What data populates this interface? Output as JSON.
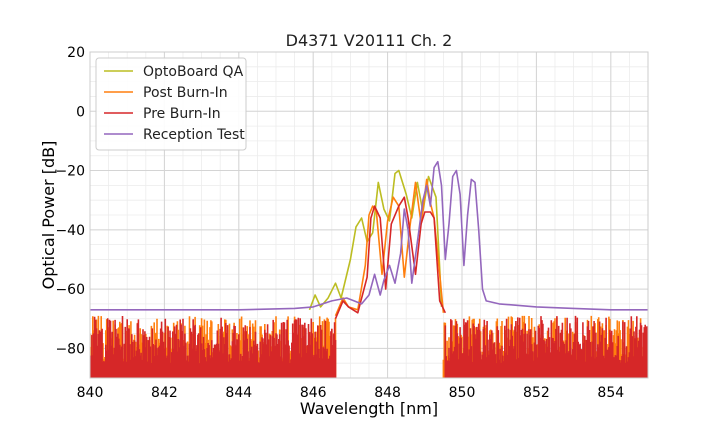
{
  "chart_data": {
    "type": "line",
    "title": "D4371 V20111 Ch. 2",
    "xlabel": "Wavelength [nm]",
    "ylabel": "Optical Power [dB]",
    "xlim": [
      840,
      855
    ],
    "ylim": [
      -90,
      20
    ],
    "x_ticks": [
      840,
      842,
      844,
      846,
      848,
      850,
      852,
      854
    ],
    "y_ticks": [
      -80,
      -60,
      -40,
      -20,
      0,
      20
    ],
    "x_minor_step": 0.5,
    "y_minor_step": 5,
    "grid": true,
    "legend_position": "top-left",
    "noise_floor": -90,
    "series": [
      {
        "name": "OptoBoard QA",
        "color": "#bcbd22",
        "points": [
          [
            845.9,
            -67
          ],
          [
            846.05,
            -62
          ],
          [
            846.2,
            -66
          ],
          [
            846.4,
            -63
          ],
          [
            846.6,
            -58
          ],
          [
            846.75,
            -63
          ],
          [
            847.0,
            -50
          ],
          [
            847.15,
            -39
          ],
          [
            847.3,
            -36
          ],
          [
            847.45,
            -44
          ],
          [
            847.6,
            -41
          ],
          [
            847.75,
            -24
          ],
          [
            847.9,
            -33
          ],
          [
            848.05,
            -37
          ],
          [
            848.2,
            -21
          ],
          [
            848.3,
            -20
          ],
          [
            848.5,
            -28
          ],
          [
            848.65,
            -36
          ],
          [
            848.8,
            -24
          ],
          [
            848.95,
            -34
          ],
          [
            849.1,
            -22
          ],
          [
            849.3,
            -29
          ],
          [
            849.4,
            -53
          ],
          [
            849.45,
            -66
          ]
        ]
      },
      {
        "name": "Post Burn-In",
        "color": "#ff7f0e",
        "points": [
          [
            846.6,
            -69
          ],
          [
            846.8,
            -63
          ],
          [
            846.95,
            -66
          ],
          [
            847.2,
            -67
          ],
          [
            847.4,
            -52
          ],
          [
            847.5,
            -35
          ],
          [
            847.6,
            -32
          ],
          [
            847.7,
            -34
          ],
          [
            847.85,
            -55
          ],
          [
            848.0,
            -37
          ],
          [
            848.15,
            -29
          ],
          [
            848.3,
            -32
          ],
          [
            848.45,
            -56
          ],
          [
            848.6,
            -39
          ],
          [
            848.75,
            -24
          ],
          [
            848.9,
            -38
          ],
          [
            849.05,
            -23
          ],
          [
            849.15,
            -31
          ],
          [
            849.25,
            -36
          ],
          [
            849.4,
            -55
          ],
          [
            849.5,
            -68
          ]
        ]
      },
      {
        "name": "Pre Burn-In",
        "color": "#d62728",
        "points": [
          [
            846.6,
            -70
          ],
          [
            846.8,
            -64
          ],
          [
            846.95,
            -66
          ],
          [
            847.2,
            -68
          ],
          [
            847.45,
            -56
          ],
          [
            847.55,
            -36
          ],
          [
            847.65,
            -32
          ],
          [
            847.8,
            -36
          ],
          [
            847.95,
            -60
          ],
          [
            848.1,
            -38
          ],
          [
            848.3,
            -32
          ],
          [
            848.45,
            -29
          ],
          [
            848.55,
            -36
          ],
          [
            848.75,
            -55
          ],
          [
            848.9,
            -38
          ],
          [
            849.0,
            -34
          ],
          [
            849.15,
            -34
          ],
          [
            849.25,
            -36
          ],
          [
            849.4,
            -64
          ],
          [
            849.55,
            -68
          ]
        ]
      },
      {
        "name": "Reception Test",
        "color": "#9467bd",
        "points": [
          [
            840,
            -67
          ],
          [
            842,
            -67
          ],
          [
            844,
            -67
          ],
          [
            845.5,
            -66.5
          ],
          [
            846.0,
            -66
          ],
          [
            846.5,
            -64
          ],
          [
            846.9,
            -63
          ],
          [
            847.1,
            -64
          ],
          [
            847.3,
            -65
          ],
          [
            847.5,
            -62
          ],
          [
            847.65,
            -55
          ],
          [
            847.8,
            -62
          ],
          [
            847.9,
            -57
          ],
          [
            848.05,
            -52
          ],
          [
            848.2,
            -58
          ],
          [
            848.35,
            -48
          ],
          [
            848.45,
            -33
          ],
          [
            848.55,
            -40
          ],
          [
            848.65,
            -58
          ],
          [
            848.8,
            -44
          ],
          [
            848.95,
            -30
          ],
          [
            849.05,
            -25
          ],
          [
            849.15,
            -32
          ],
          [
            849.25,
            -19
          ],
          [
            849.35,
            -17
          ],
          [
            849.45,
            -25
          ],
          [
            849.55,
            -50
          ],
          [
            849.65,
            -38
          ],
          [
            849.75,
            -22
          ],
          [
            849.85,
            -20
          ],
          [
            849.95,
            -28
          ],
          [
            850.05,
            -52
          ],
          [
            850.15,
            -35
          ],
          [
            850.25,
            -23
          ],
          [
            850.35,
            -24
          ],
          [
            850.45,
            -40
          ],
          [
            850.55,
            -60
          ],
          [
            850.65,
            -64
          ],
          [
            851,
            -65
          ],
          [
            852,
            -66
          ],
          [
            853,
            -66.5
          ],
          [
            854,
            -67
          ],
          [
            855,
            -67
          ]
        ]
      }
    ],
    "noise_series": [
      {
        "name": "Post Burn-In",
        "color": "#ff7f0e",
        "ranges": [
          [
            840.0,
            846.6
          ],
          [
            849.5,
            855.0
          ]
        ],
        "min": -84,
        "max": -69
      },
      {
        "name": "Pre Burn-In",
        "color": "#d62728",
        "ranges": [
          [
            840.0,
            846.6
          ],
          [
            849.55,
            855.0
          ]
        ],
        "min": -85,
        "max": -69
      }
    ]
  }
}
